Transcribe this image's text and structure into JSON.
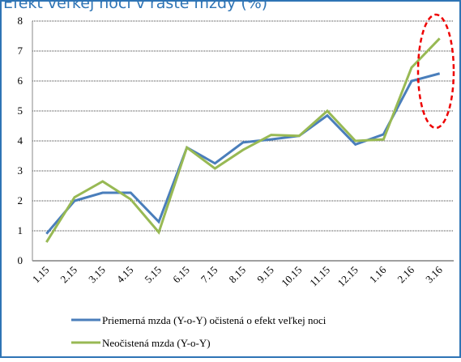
{
  "chart_data": {
    "type": "line",
    "title": "Efekt veľkej noci v raste mzdy (%)",
    "categories": [
      "1.15",
      "2.15",
      "3.15",
      "4.15",
      "5.15",
      "6.15",
      "7.15",
      "8.15",
      "9.15",
      "10.15",
      "11.15",
      "12.15",
      "1.16",
      "2.16",
      "3.16"
    ],
    "series": [
      {
        "name": "Priemerná mzda (Y-o-Y) očistená o efekt veľkej noci",
        "color": "#4a7ebb",
        "values": [
          0.9,
          2.0,
          2.27,
          2.27,
          1.3,
          3.78,
          3.25,
          3.95,
          4.05,
          4.17,
          4.85,
          3.88,
          4.22,
          6.0,
          6.25
        ]
      },
      {
        "name": "Neočistená mzda (Y-o-Y)",
        "color": "#98b954",
        "values": [
          0.62,
          2.12,
          2.65,
          2.05,
          0.95,
          3.78,
          3.08,
          3.7,
          4.2,
          4.17,
          5.0,
          4.0,
          4.05,
          6.45,
          7.42
        ]
      }
    ],
    "ylim": [
      0,
      8
    ],
    "yticks": [
      0,
      1,
      2,
      3,
      4,
      5,
      6,
      7,
      8
    ],
    "grid": true
  }
}
